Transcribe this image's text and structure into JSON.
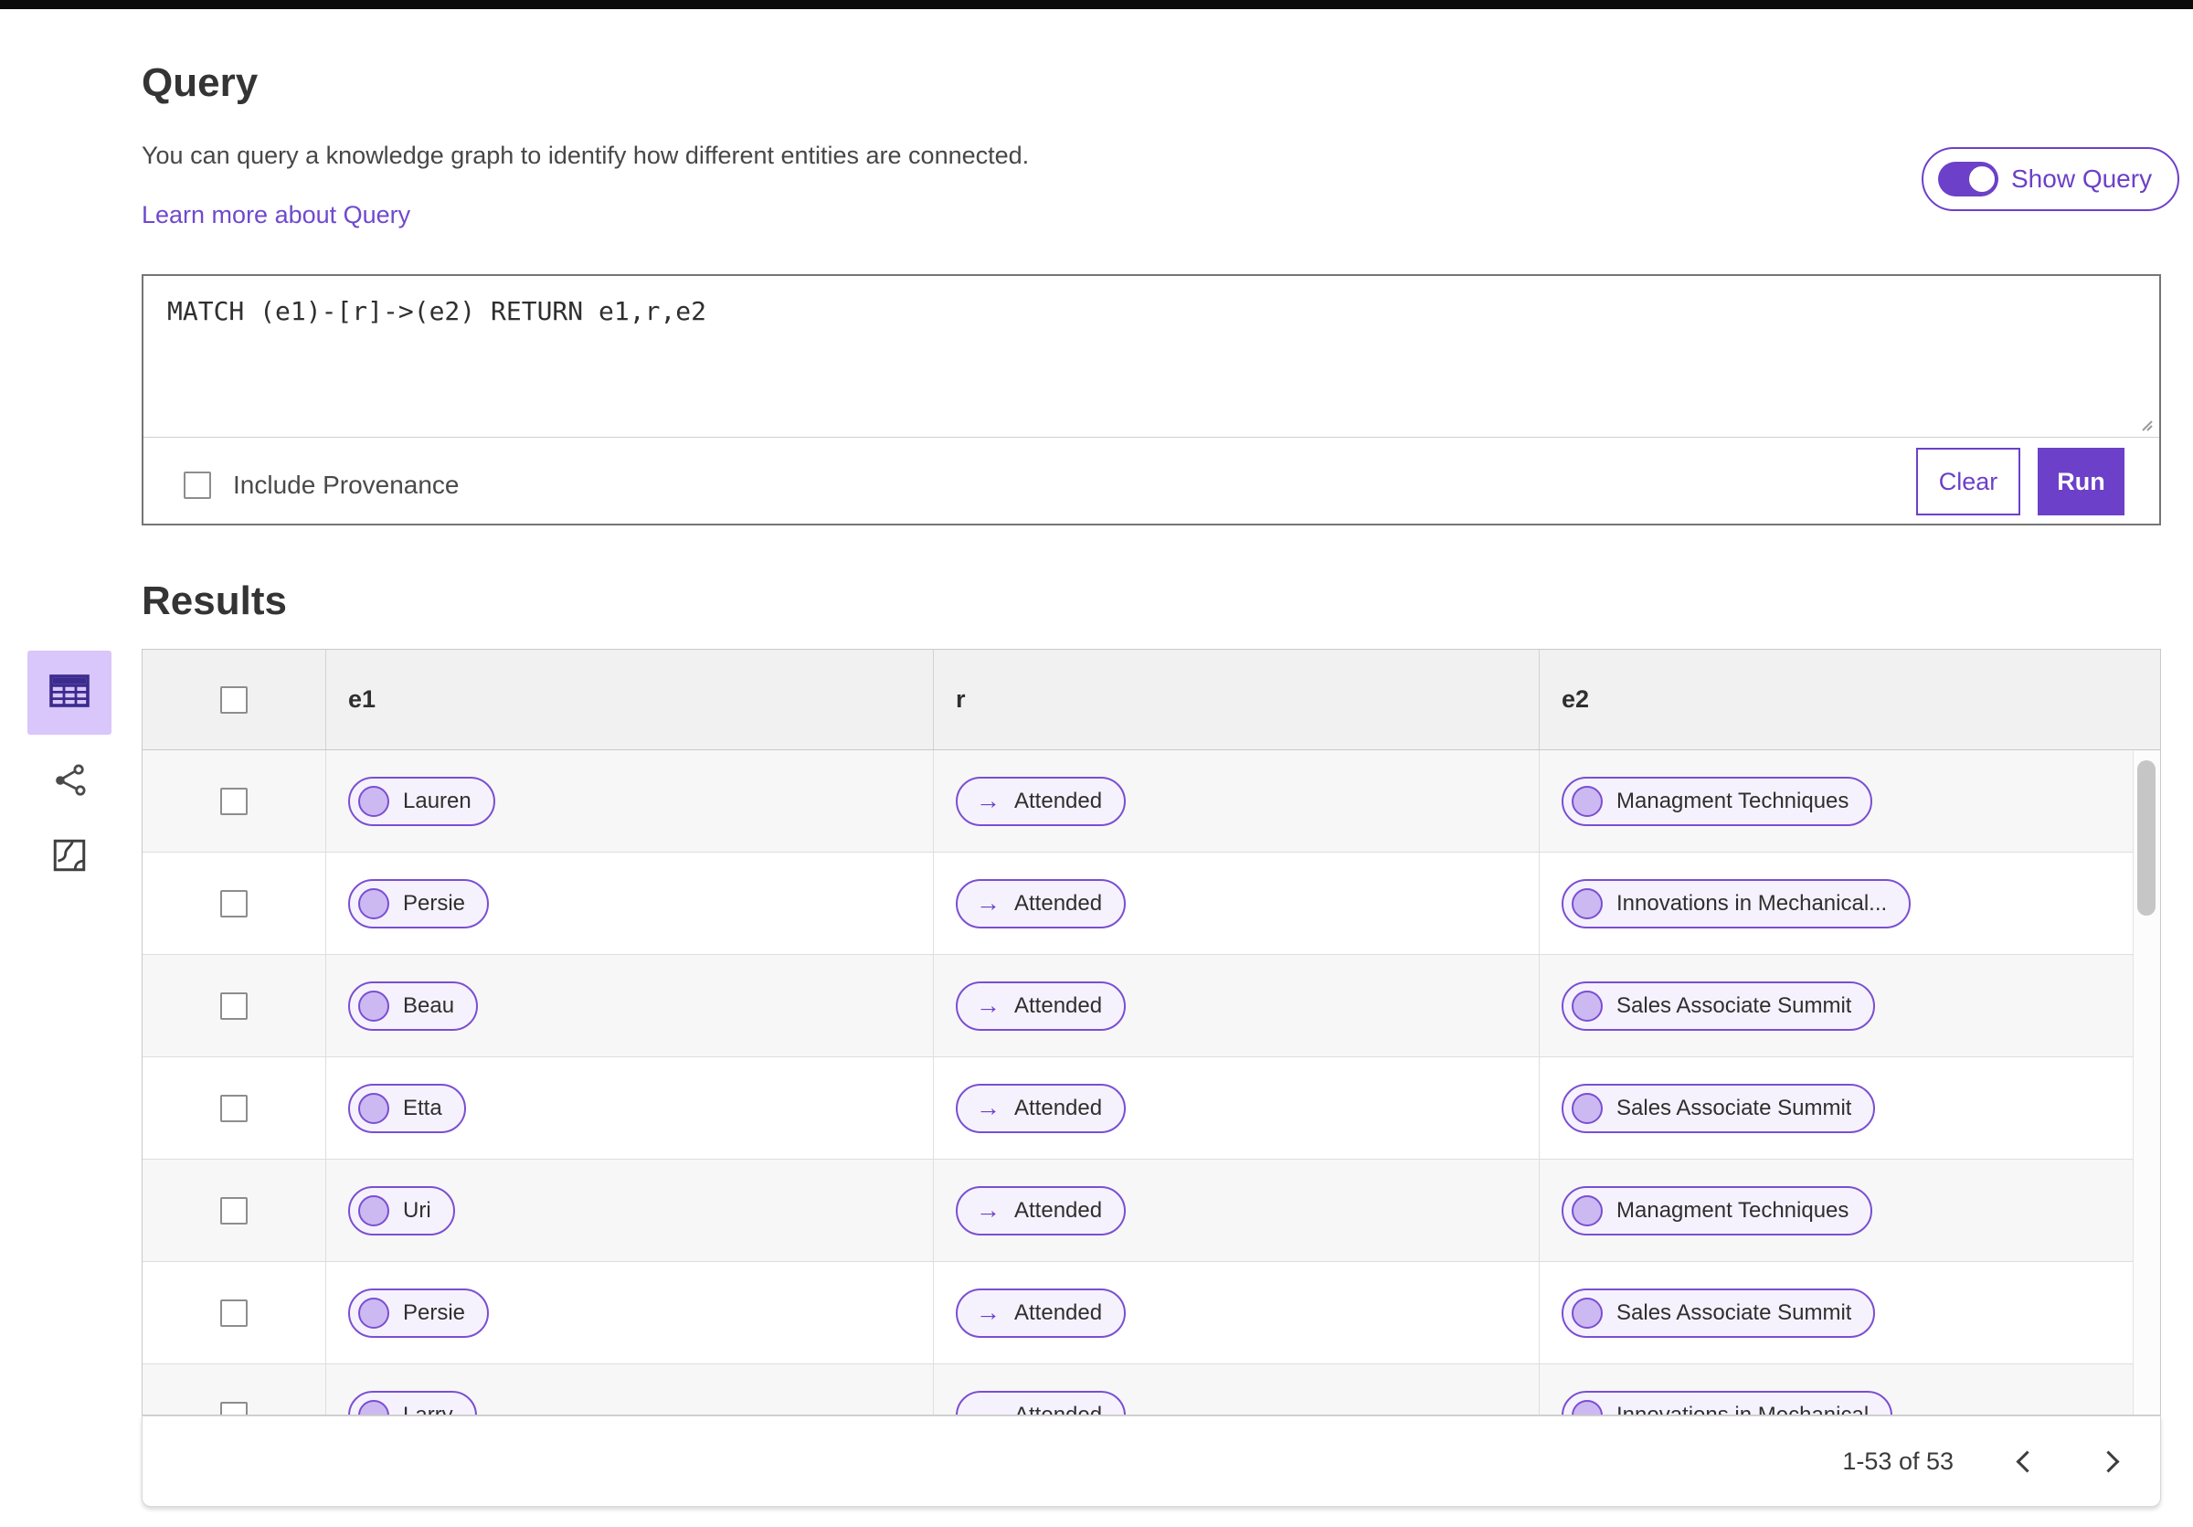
{
  "colors": {
    "accent": "#6c40c8",
    "pill_border": "#7a4fd2",
    "pill_bg": "#f6f2fd",
    "pill_node": "#cdb9f2",
    "selected_rail_bg": "#d9c6fa",
    "table_icon": "#3b2b8e",
    "row_stripe": "#f7f7f7",
    "header_bg": "#f1f1f1"
  },
  "query_section": {
    "title": "Query",
    "description": "You can query a knowledge graph to identify how different entities are connected.",
    "learn_more": "Learn more about Query",
    "show_query_label": "Show Query",
    "show_query_toggle_state": "on",
    "query_text": "MATCH (e1)-[r]->(e2) RETURN e1,r,e2",
    "include_provenance_label": "Include Provenance",
    "include_provenance_checked": false,
    "clear_label": "Clear",
    "run_label": "Run"
  },
  "results_section": {
    "title": "Results",
    "view_icons": [
      {
        "name": "table-view-icon",
        "selected": true
      },
      {
        "name": "graph-view-icon",
        "selected": false
      },
      {
        "name": "map-view-icon",
        "selected": false
      }
    ],
    "table": {
      "columns": [
        "e1",
        "r",
        "e2"
      ],
      "rows": [
        {
          "e1": "Lauren",
          "r": "Attended",
          "e2": "Managment Techniques"
        },
        {
          "e1": "Persie",
          "r": "Attended",
          "e2": "Innovations in Mechanical..."
        },
        {
          "e1": "Beau",
          "r": "Attended",
          "e2": "Sales Associate Summit"
        },
        {
          "e1": "Etta",
          "r": "Attended",
          "e2": "Sales Associate Summit"
        },
        {
          "e1": "Uri",
          "r": "Attended",
          "e2": "Managment Techniques"
        },
        {
          "e1": "Persie",
          "r": "Attended",
          "e2": "Sales Associate Summit"
        },
        {
          "e1": "Larry",
          "r": "Attended",
          "e2": "Innovations in Mechanical"
        }
      ]
    },
    "pagination": {
      "range_text": "1-53 of 53"
    }
  }
}
